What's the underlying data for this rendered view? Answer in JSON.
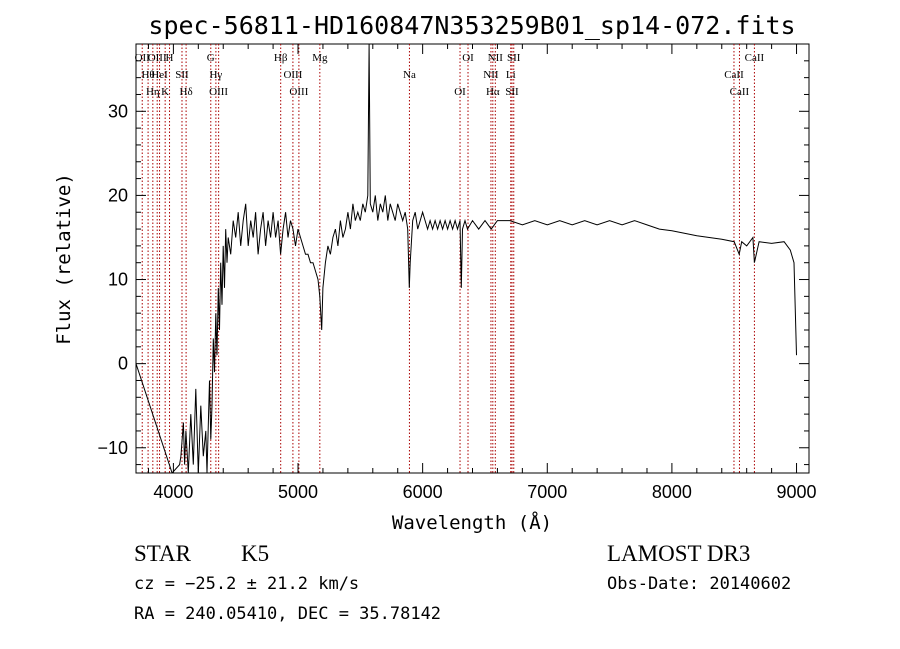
{
  "chart_data": {
    "type": "line",
    "title": "spec-56811-HD160847N353259B01_sp14-072.fits",
    "xlabel": "Wavelength (Å)",
    "ylabel": "Flux (relative)",
    "xlim": [
      3700,
      9100
    ],
    "ylim": [
      -13,
      38
    ],
    "xticks": [
      4000,
      5000,
      6000,
      7000,
      8000,
      9000
    ],
    "yticks": [
      -10,
      0,
      10,
      20,
      30
    ],
    "grid": false,
    "series": [
      {
        "points": [
          [
            3700,
            0
          ],
          [
            3990,
            -13
          ],
          [
            4050,
            -12
          ],
          [
            4060,
            -11
          ],
          [
            4080,
            -7
          ],
          [
            4090,
            -12
          ],
          [
            4100,
            -8
          ],
          [
            4120,
            -13
          ],
          [
            4140,
            -6
          ],
          [
            4160,
            -12
          ],
          [
            4180,
            -3
          ],
          [
            4200,
            -13
          ],
          [
            4220,
            -5
          ],
          [
            4240,
            -11
          ],
          [
            4260,
            -8
          ],
          [
            4270,
            -13
          ],
          [
            4290,
            -2
          ],
          [
            4300,
            -9
          ],
          [
            4310,
            -5
          ],
          [
            4320,
            3
          ],
          [
            4330,
            -1
          ],
          [
            4340,
            6
          ],
          [
            4350,
            1
          ],
          [
            4360,
            9
          ],
          [
            4370,
            4
          ],
          [
            4380,
            12
          ],
          [
            4390,
            7
          ],
          [
            4400,
            14
          ],
          [
            4410,
            9
          ],
          [
            4420,
            16
          ],
          [
            4430,
            12
          ],
          [
            4440,
            15
          ],
          [
            4460,
            13
          ],
          [
            4480,
            17
          ],
          [
            4500,
            15
          ],
          [
            4520,
            18
          ],
          [
            4540,
            14
          ],
          [
            4560,
            17
          ],
          [
            4580,
            19
          ],
          [
            4600,
            14
          ],
          [
            4620,
            17
          ],
          [
            4640,
            15
          ],
          [
            4660,
            18
          ],
          [
            4680,
            13
          ],
          [
            4700,
            16
          ],
          [
            4720,
            18
          ],
          [
            4740,
            14
          ],
          [
            4760,
            17
          ],
          [
            4780,
            15
          ],
          [
            4800,
            18
          ],
          [
            4820,
            15
          ],
          [
            4840,
            17
          ],
          [
            4860,
            13
          ],
          [
            4880,
            16
          ],
          [
            4900,
            18
          ],
          [
            4920,
            15
          ],
          [
            4940,
            17
          ],
          [
            4960,
            16
          ],
          [
            4980,
            14
          ],
          [
            5000,
            16
          ],
          [
            5020,
            15
          ],
          [
            5040,
            14
          ],
          [
            5060,
            13
          ],
          [
            5080,
            13
          ],
          [
            5100,
            12
          ],
          [
            5120,
            12
          ],
          [
            5140,
            11
          ],
          [
            5160,
            10
          ],
          [
            5175,
            8
          ],
          [
            5190,
            4
          ],
          [
            5200,
            9
          ],
          [
            5220,
            12
          ],
          [
            5240,
            14
          ],
          [
            5260,
            13
          ],
          [
            5280,
            15
          ],
          [
            5300,
            16
          ],
          [
            5320,
            14
          ],
          [
            5340,
            17
          ],
          [
            5360,
            15
          ],
          [
            5380,
            16
          ],
          [
            5400,
            18
          ],
          [
            5420,
            16
          ],
          [
            5440,
            19
          ],
          [
            5460,
            17
          ],
          [
            5480,
            18
          ],
          [
            5500,
            17
          ],
          [
            5520,
            19
          ],
          [
            5540,
            18
          ],
          [
            5560,
            20
          ],
          [
            5570,
            38
          ],
          [
            5580,
            19
          ],
          [
            5600,
            18
          ],
          [
            5620,
            20
          ],
          [
            5640,
            17
          ],
          [
            5660,
            19
          ],
          [
            5680,
            18
          ],
          [
            5700,
            20
          ],
          [
            5720,
            17
          ],
          [
            5740,
            19
          ],
          [
            5760,
            18
          ],
          [
            5780,
            17
          ],
          [
            5800,
            19
          ],
          [
            5820,
            18
          ],
          [
            5840,
            17
          ],
          [
            5860,
            18
          ],
          [
            5880,
            16
          ],
          [
            5893,
            9
          ],
          [
            5900,
            12
          ],
          [
            5920,
            17
          ],
          [
            5940,
            18
          ],
          [
            5960,
            16
          ],
          [
            5980,
            17
          ],
          [
            6000,
            18
          ],
          [
            6020,
            17
          ],
          [
            6040,
            16
          ],
          [
            6060,
            17
          ],
          [
            6080,
            16
          ],
          [
            6100,
            17
          ],
          [
            6120,
            16
          ],
          [
            6140,
            17
          ],
          [
            6160,
            16
          ],
          [
            6180,
            17
          ],
          [
            6200,
            16
          ],
          [
            6220,
            17
          ],
          [
            6240,
            16
          ],
          [
            6260,
            17
          ],
          [
            6280,
            16
          ],
          [
            6300,
            17
          ],
          [
            6310,
            9
          ],
          [
            6320,
            16
          ],
          [
            6340,
            17
          ],
          [
            6360,
            16
          ],
          [
            6400,
            17
          ],
          [
            6450,
            16
          ],
          [
            6500,
            17
          ],
          [
            6550,
            16
          ],
          [
            6600,
            17
          ],
          [
            6700,
            17
          ],
          [
            6800,
            16.5
          ],
          [
            6900,
            17
          ],
          [
            7000,
            16.5
          ],
          [
            7100,
            17
          ],
          [
            7200,
            16.5
          ],
          [
            7300,
            17
          ],
          [
            7400,
            16.5
          ],
          [
            7500,
            17
          ],
          [
            7600,
            16.5
          ],
          [
            7700,
            17
          ],
          [
            7800,
            16.5
          ],
          [
            7900,
            16
          ],
          [
            8000,
            15.8
          ],
          [
            8100,
            15.5
          ],
          [
            8200,
            15.2
          ],
          [
            8300,
            15
          ],
          [
            8400,
            14.8
          ],
          [
            8500,
            14.5
          ],
          [
            8540,
            13
          ],
          [
            8560,
            14.5
          ],
          [
            8600,
            14
          ],
          [
            8650,
            15
          ],
          [
            8662,
            12
          ],
          [
            8700,
            14.5
          ],
          [
            8800,
            14.3
          ],
          [
            8900,
            14.5
          ],
          [
            8950,
            13.5
          ],
          [
            8980,
            12
          ],
          [
            9000,
            1
          ]
        ]
      }
    ],
    "lines": [
      {
        "x": 3750,
        "label": "OII"
      },
      {
        "x": 3797,
        "label": "Hθ"
      },
      {
        "x": 3835,
        "label": "Hη"
      },
      {
        "x": 3870,
        "label": "OIII"
      },
      {
        "x": 3889,
        "label": "HeI"
      },
      {
        "x": 3934,
        "label": "K"
      },
      {
        "x": 3969,
        "label": "H"
      },
      {
        "x": 4069,
        "label": "SII"
      },
      {
        "x": 4102,
        "label": "Hδ"
      },
      {
        "x": 4300,
        "label": "G"
      },
      {
        "x": 4341,
        "label": "Hγ"
      },
      {
        "x": 4363,
        "label": "OIII"
      },
      {
        "x": 4861,
        "label": "Hβ"
      },
      {
        "x": 4959,
        "label": "OIII"
      },
      {
        "x": 5007,
        "label": "OIII"
      },
      {
        "x": 5175,
        "label": "Mg"
      },
      {
        "x": 5894,
        "label": "Na"
      },
      {
        "x": 6300,
        "label": "OI"
      },
      {
        "x": 6364,
        "label": "OI"
      },
      {
        "x": 6548,
        "label": "NII"
      },
      {
        "x": 6563,
        "label": "Hα"
      },
      {
        "x": 6583,
        "label": "NII"
      },
      {
        "x": 6707,
        "label": "Li"
      },
      {
        "x": 6717,
        "label": "SII"
      },
      {
        "x": 6731,
        "label": "SII"
      },
      {
        "x": 8498,
        "label": "CaII"
      },
      {
        "x": 8542,
        "label": "CaII"
      },
      {
        "x": 8662,
        "label": "CaII"
      }
    ],
    "colors": {
      "spectrum": "#000000",
      "line_markers": "#aa0000"
    }
  },
  "info": {
    "class_label": "STAR",
    "subclass": "K5",
    "survey": "LAMOST DR3",
    "cz": "cz = −25.2 ± 21.2 km/s",
    "obs_date": "Obs-Date: 20140602",
    "coords": "RA = 240.05410, DEC =  35.78142"
  }
}
